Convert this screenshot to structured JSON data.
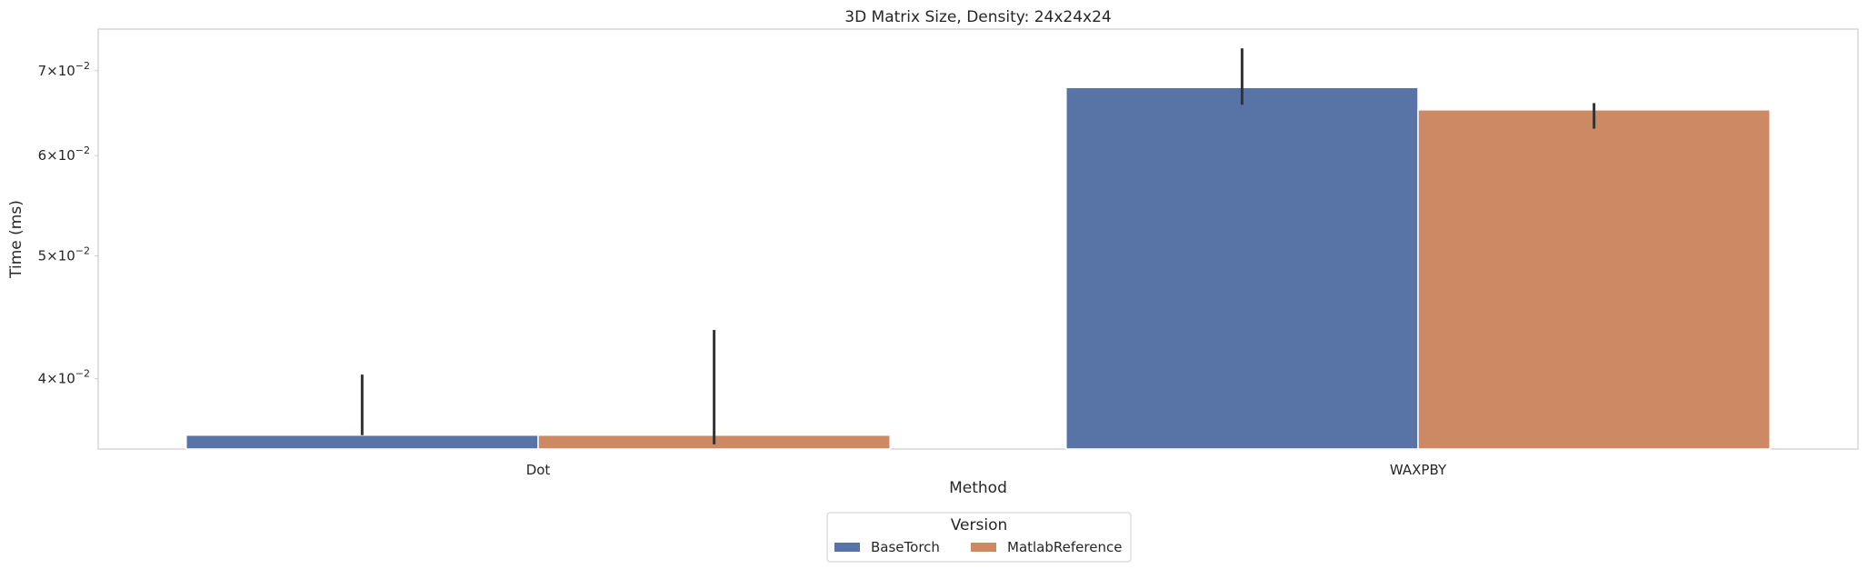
{
  "chart_data": {
    "type": "bar",
    "title": "3D Matrix Size, Density: 24x24x24",
    "xlabel": "Method",
    "ylabel": "Time (ms)",
    "categories": [
      "Dot",
      "WAXPBY"
    ],
    "yscale": "log",
    "ylim": [
      0.0352,
      0.0755
    ],
    "yticks": [
      {
        "value": 0.04,
        "mantissa": "4",
        "base": "10",
        "exp": "−2"
      },
      {
        "value": 0.05,
        "mantissa": "5",
        "base": "10",
        "exp": "−2"
      },
      {
        "value": 0.06,
        "mantissa": "6",
        "base": "10",
        "exp": "−2"
      },
      {
        "value": 0.07,
        "mantissa": "7",
        "base": "10",
        "exp": "−2"
      }
    ],
    "grid": false,
    "legend": {
      "title": "Version",
      "placement": "bottom-center"
    },
    "series": [
      {
        "name": "BaseTorch",
        "color": "#5874a6",
        "values": [
          0.0361,
          0.0679
        ],
        "error_low": [
          0.0361,
          0.0658
        ],
        "error_high": [
          0.0403,
          0.0729
        ]
      },
      {
        "name": "MatlabReference",
        "color": "#cc8963",
        "values": [
          0.0361,
          0.0652
        ],
        "error_low": [
          0.0355,
          0.063
        ],
        "error_high": [
          0.0437,
          0.066
        ]
      }
    ]
  }
}
